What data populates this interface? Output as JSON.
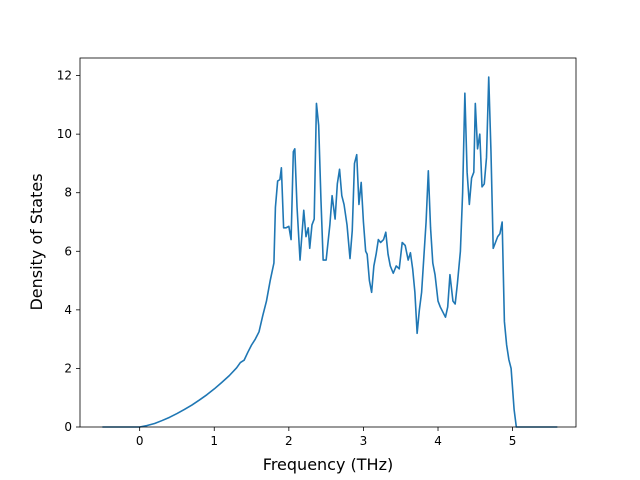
{
  "chart_data": {
    "type": "line",
    "title": "",
    "xlabel": "Frequency (THz)",
    "ylabel": "Density of States",
    "xlim": [
      -0.8,
      5.85
    ],
    "ylim": [
      0,
      12.6
    ],
    "xticks": [
      0,
      1,
      2,
      3,
      4,
      5
    ],
    "yticks": [
      0,
      2,
      4,
      6,
      8,
      10,
      12
    ],
    "grid": false,
    "legend": "none",
    "series": [
      {
        "color": "#1f77b4",
        "x": [
          -0.5,
          -0.2,
          0.0,
          0.1,
          0.2,
          0.3,
          0.4,
          0.5,
          0.6,
          0.7,
          0.8,
          0.9,
          1.0,
          1.1,
          1.2,
          1.3,
          1.35,
          1.4,
          1.45,
          1.5,
          1.55,
          1.6,
          1.65,
          1.7,
          1.75,
          1.8,
          1.82,
          1.85,
          1.88,
          1.9,
          1.93,
          1.96,
          2.0,
          2.03,
          2.06,
          2.08,
          2.11,
          2.15,
          2.2,
          2.23,
          2.26,
          2.28,
          2.31,
          2.34,
          2.37,
          2.4,
          2.43,
          2.46,
          2.5,
          2.55,
          2.58,
          2.62,
          2.65,
          2.68,
          2.71,
          2.74,
          2.78,
          2.82,
          2.85,
          2.88,
          2.91,
          2.94,
          2.97,
          3.0,
          3.03,
          3.05,
          3.08,
          3.11,
          3.14,
          3.17,
          3.2,
          3.23,
          3.27,
          3.3,
          3.33,
          3.36,
          3.4,
          3.44,
          3.48,
          3.52,
          3.56,
          3.6,
          3.63,
          3.66,
          3.69,
          3.72,
          3.75,
          3.78,
          3.81,
          3.84,
          3.87,
          3.9,
          3.93,
          3.96,
          4.0,
          4.03,
          4.06,
          4.1,
          4.13,
          4.16,
          4.2,
          4.23,
          4.26,
          4.3,
          4.33,
          4.36,
          4.39,
          4.42,
          4.45,
          4.48,
          4.5,
          4.53,
          4.56,
          4.59,
          4.62,
          4.65,
          4.68,
          4.71,
          4.74,
          4.77,
          4.8,
          4.83,
          4.86,
          4.89,
          4.92,
          4.95,
          4.98,
          5.02,
          5.05,
          5.08,
          5.2,
          5.6
        ],
        "y": [
          0,
          0,
          0,
          0.05,
          0.12,
          0.22,
          0.33,
          0.46,
          0.6,
          0.75,
          0.92,
          1.1,
          1.3,
          1.52,
          1.75,
          2.02,
          2.2,
          2.28,
          2.55,
          2.8,
          3.0,
          3.25,
          3.8,
          4.3,
          5.0,
          5.6,
          7.5,
          8.4,
          8.45,
          8.85,
          6.8,
          6.8,
          6.85,
          6.4,
          9.4,
          9.5,
          7.5,
          5.7,
          7.4,
          6.5,
          6.8,
          6.1,
          6.9,
          7.1,
          11.05,
          10.3,
          7.8,
          5.7,
          5.7,
          6.9,
          7.9,
          7.1,
          8.3,
          8.8,
          7.9,
          7.6,
          6.9,
          5.75,
          6.7,
          9.0,
          9.3,
          7.6,
          8.35,
          7.0,
          6.0,
          5.9,
          5.0,
          4.6,
          5.5,
          5.9,
          6.4,
          6.3,
          6.4,
          6.65,
          5.9,
          5.5,
          5.25,
          5.5,
          5.4,
          6.3,
          6.2,
          5.7,
          5.95,
          5.4,
          4.6,
          3.2,
          4.0,
          4.6,
          5.8,
          7.0,
          8.75,
          6.8,
          5.6,
          5.2,
          4.3,
          4.1,
          3.95,
          3.75,
          4.1,
          5.2,
          4.3,
          4.2,
          4.9,
          6.0,
          8.0,
          11.4,
          8.7,
          7.6,
          8.5,
          8.7,
          11.05,
          9.5,
          10.0,
          8.2,
          8.3,
          9.2,
          11.95,
          9.4,
          6.1,
          6.3,
          6.5,
          6.6,
          7.0,
          3.6,
          2.8,
          2.3,
          2.0,
          0.6,
          0,
          0,
          0,
          0
        ]
      }
    ]
  }
}
